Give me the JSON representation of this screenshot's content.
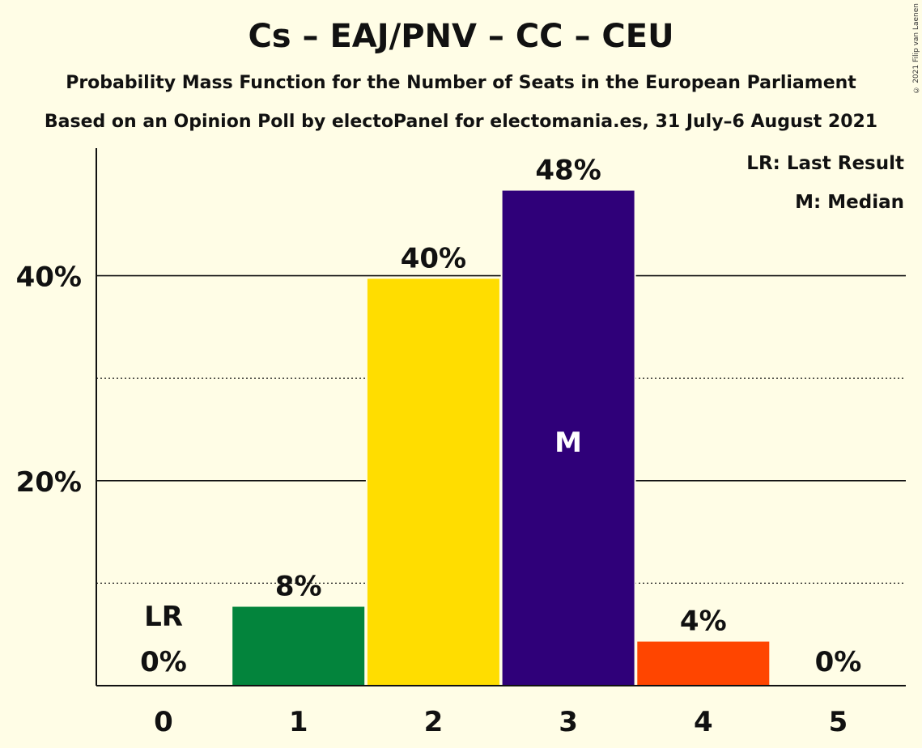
{
  "title": "Cs – EAJ/PNV – CC – CEU",
  "subtitle1": "Probability Mass Function for the Number of Seats in the European Parliament",
  "subtitle2": "Based on an Opinion Poll by electoPanel for electomania.es, 31 July–6 August 2021",
  "copyright": "© 2021 Filip van Laenen",
  "legend": {
    "last_result": "LR: Last Result",
    "median": "M: Median"
  },
  "chart_data": {
    "type": "bar",
    "categories": [
      "0",
      "1",
      "2",
      "3",
      "4",
      "5"
    ],
    "values": [
      0,
      7.7,
      39.7,
      48.3,
      4.3,
      0
    ],
    "data_labels": [
      "0%",
      "8%",
      "40%",
      "48%",
      "4%",
      "0%"
    ],
    "colors": [
      "#fffde6",
      "#03843c",
      "#ffdd00",
      "#2f0079",
      "#ff4500",
      "#fffde6"
    ],
    "ylim": [
      0,
      52
    ],
    "yticks": [
      20,
      40
    ],
    "ytick_labels": [
      "20%",
      "40%"
    ],
    "minor_gridlines": [
      10,
      30
    ],
    "last_result_index": 0,
    "last_result_label": "LR",
    "median_index": 3,
    "median_label": "M",
    "grid": true,
    "legend_position": "top-right"
  }
}
